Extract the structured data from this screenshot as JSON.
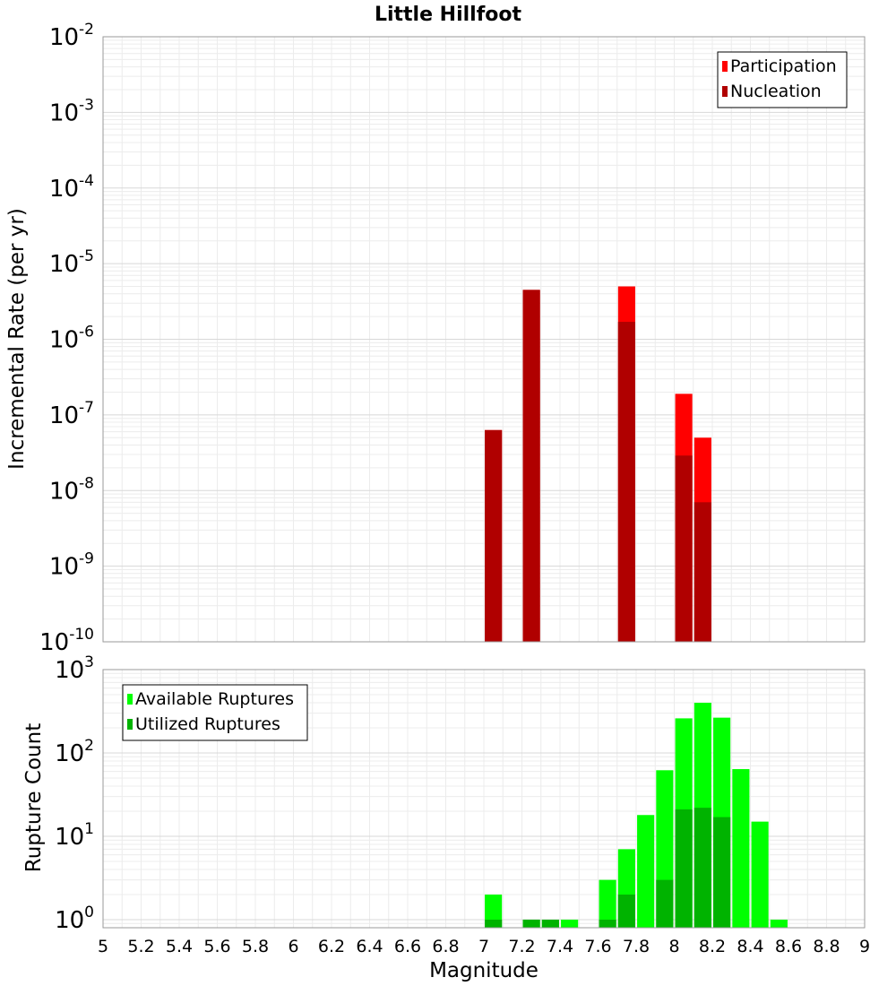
{
  "chart_data": [
    {
      "type": "bar",
      "title": "Little Hillfoot",
      "ylabel": "Incremental Rate (per yr)",
      "xlabel": "",
      "y_scale": "log",
      "ylim": [
        1e-10,
        0.01
      ],
      "xlim": [
        5,
        9
      ],
      "y_ticks": [
        {
          "base": "10",
          "exp": "-2"
        },
        {
          "base": "10",
          "exp": "-3"
        },
        {
          "base": "10",
          "exp": "-4"
        },
        {
          "base": "10",
          "exp": "-5"
        },
        {
          "base": "10",
          "exp": "-6"
        },
        {
          "base": "10",
          "exp": "-7"
        },
        {
          "base": "10",
          "exp": "-8"
        },
        {
          "base": "10",
          "exp": "-9"
        },
        {
          "base": "10",
          "exp": "-10"
        }
      ],
      "grid": true,
      "legend_position": "top-right",
      "series": [
        {
          "name": "Participation",
          "color": "#ff0000",
          "points": [
            {
              "x": 7.05,
              "y": 6.3e-08
            },
            {
              "x": 7.25,
              "y": 4.5e-06
            },
            {
              "x": 7.75,
              "y": 5e-06
            },
            {
              "x": 8.05,
              "y": 1.9e-07
            },
            {
              "x": 8.15,
              "y": 5e-08
            }
          ]
        },
        {
          "name": "Nucleation",
          "color": "#b00000",
          "points": [
            {
              "x": 7.05,
              "y": 6.3e-08
            },
            {
              "x": 7.25,
              "y": 4.5e-06
            },
            {
              "x": 7.75,
              "y": 1.7e-06
            },
            {
              "x": 8.05,
              "y": 2.9e-08
            },
            {
              "x": 8.15,
              "y": 7e-09
            }
          ]
        }
      ]
    },
    {
      "type": "bar",
      "title": "",
      "ylabel": "Rupture Count",
      "xlabel": "Magnitude",
      "y_scale": "log",
      "ylim": [
        0.8,
        1000
      ],
      "xlim": [
        5,
        9
      ],
      "y_ticks": [
        {
          "base": "10",
          "exp": "3"
        },
        {
          "base": "10",
          "exp": "2"
        },
        {
          "base": "10",
          "exp": "1"
        },
        {
          "base": "10",
          "exp": "0"
        }
      ],
      "x_ticks": [
        "5",
        "5.2",
        "5.4",
        "5.6",
        "5.8",
        "6",
        "6.2",
        "6.4",
        "6.6",
        "6.8",
        "7",
        "7.2",
        "7.4",
        "7.6",
        "7.8",
        "8",
        "8.2",
        "8.4",
        "8.6",
        "8.8",
        "9"
      ],
      "grid": true,
      "legend_position": "top-left",
      "series": [
        {
          "name": "Available Ruptures",
          "color": "#00ff00",
          "points": [
            {
              "x": 7.05,
              "y": 2
            },
            {
              "x": 7.25,
              "y": 1
            },
            {
              "x": 7.35,
              "y": 1
            },
            {
              "x": 7.45,
              "y": 1
            },
            {
              "x": 7.65,
              "y": 3
            },
            {
              "x": 7.75,
              "y": 7
            },
            {
              "x": 7.85,
              "y": 18
            },
            {
              "x": 7.95,
              "y": 62
            },
            {
              "x": 8.05,
              "y": 260
            },
            {
              "x": 8.15,
              "y": 400
            },
            {
              "x": 8.25,
              "y": 265
            },
            {
              "x": 8.35,
              "y": 64
            },
            {
              "x": 8.45,
              "y": 15
            },
            {
              "x": 8.55,
              "y": 1
            }
          ]
        },
        {
          "name": "Utilized Ruptures",
          "color": "#00b300",
          "points": [
            {
              "x": 7.05,
              "y": 1
            },
            {
              "x": 7.25,
              "y": 1
            },
            {
              "x": 7.35,
              "y": 1
            },
            {
              "x": 7.65,
              "y": 1
            },
            {
              "x": 7.75,
              "y": 2
            },
            {
              "x": 7.95,
              "y": 3
            },
            {
              "x": 8.05,
              "y": 21
            },
            {
              "x": 8.15,
              "y": 22
            },
            {
              "x": 8.25,
              "y": 17
            }
          ]
        }
      ]
    }
  ]
}
